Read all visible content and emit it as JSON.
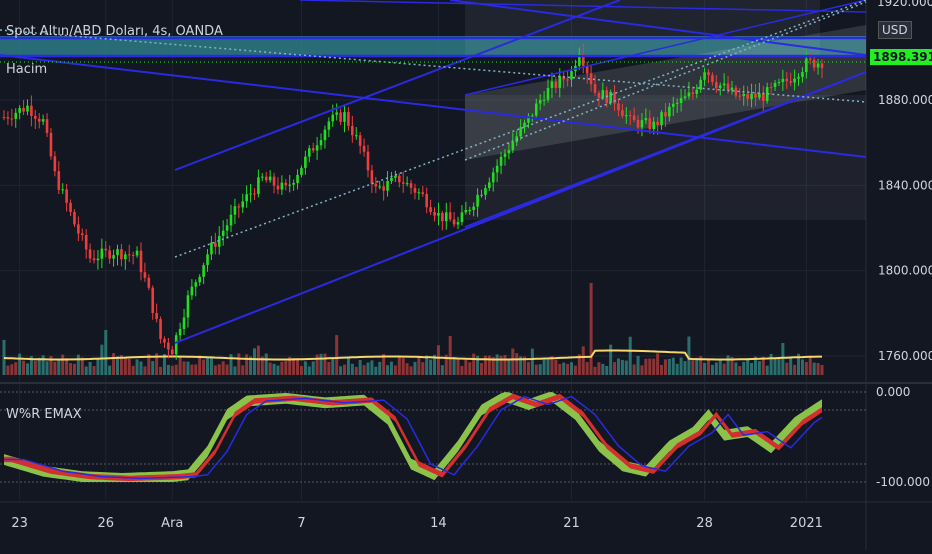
{
  "header": {
    "symbol_line": "Spot Altın/ABD Doları, 4s, OANDA",
    "volume_label": "Hacim",
    "currency": "USD",
    "top_partial_price": "1920.000"
  },
  "indicator": {
    "label": "W%R EMAX",
    "ticks": [
      "0.000",
      "-100.000"
    ],
    "range": [
      -110,
      5
    ]
  },
  "current_price": {
    "value": "1898.391",
    "color": "#22ee22"
  },
  "colors": {
    "up": "#26a69a",
    "up_candle": "#22dd22",
    "down_candle": "#ef3d3d",
    "trendline": "#2a2ae0",
    "dotted": "#7fb3c7",
    "volume_ma": "#f5d76e",
    "wr_green": "#8bc34a",
    "wr_red": "#d32f2f",
    "background": "#131722"
  },
  "chart_data": {
    "type": "candlestick",
    "title": "Spot Altın/ABD Doları, 4s, OANDA",
    "y_ticks": [
      1760,
      1800,
      1840,
      1880
    ],
    "y_tick_labels": [
      "1760.000",
      "1800.000",
      "1840.000",
      "1880.000"
    ],
    "ylim": [
      1748,
      1922
    ],
    "x_tick_labels": [
      "23",
      "26",
      "Ara",
      "7",
      "14",
      "21",
      "28",
      "2021"
    ],
    "x_tick_index": [
      4,
      26,
      43,
      76,
      111,
      145,
      179,
      205
    ],
    "bar_count": 210,
    "anchors": [
      [
        0,
        1872
      ],
      [
        6,
        1877
      ],
      [
        10,
        1870
      ],
      [
        13,
        1845
      ],
      [
        18,
        1822
      ],
      [
        22,
        1806
      ],
      [
        28,
        1809
      ],
      [
        34,
        1807
      ],
      [
        37,
        1790
      ],
      [
        40,
        1768
      ],
      [
        43,
        1763
      ],
      [
        47,
        1787
      ],
      [
        52,
        1808
      ],
      [
        60,
        1830
      ],
      [
        66,
        1843
      ],
      [
        72,
        1838
      ],
      [
        77,
        1852
      ],
      [
        83,
        1870
      ],
      [
        87,
        1873
      ],
      [
        91,
        1858
      ],
      [
        95,
        1838
      ],
      [
        101,
        1843
      ],
      [
        107,
        1835
      ],
      [
        111,
        1826
      ],
      [
        116,
        1822
      ],
      [
        122,
        1838
      ],
      [
        129,
        1858
      ],
      [
        133,
        1868
      ],
      [
        138,
        1883
      ],
      [
        145,
        1893
      ],
      [
        147,
        1904
      ],
      [
        151,
        1884
      ],
      [
        156,
        1880
      ],
      [
        160,
        1870
      ],
      [
        166,
        1868
      ],
      [
        171,
        1877
      ],
      [
        176,
        1883
      ],
      [
        179,
        1895
      ],
      [
        182,
        1888
      ],
      [
        188,
        1881
      ],
      [
        194,
        1882
      ],
      [
        200,
        1889
      ],
      [
        205,
        1897
      ],
      [
        209,
        1898
      ]
    ],
    "volume_ma_level": 1758.5,
    "wr_anchors": [
      [
        0,
        -75
      ],
      [
        10,
        -88
      ],
      [
        20,
        -94
      ],
      [
        30,
        -96
      ],
      [
        43,
        -94
      ],
      [
        47,
        -92
      ],
      [
        52,
        -66
      ],
      [
        57,
        -25
      ],
      [
        62,
        -10
      ],
      [
        72,
        -7
      ],
      [
        82,
        -12
      ],
      [
        92,
        -9
      ],
      [
        98,
        -30
      ],
      [
        104,
        -80
      ],
      [
        110,
        -92
      ],
      [
        116,
        -60
      ],
      [
        122,
        -20
      ],
      [
        128,
        -5
      ],
      [
        134,
        -14
      ],
      [
        140,
        -5
      ],
      [
        146,
        -25
      ],
      [
        152,
        -60
      ],
      [
        158,
        -82
      ],
      [
        164,
        -88
      ],
      [
        170,
        -60
      ],
      [
        176,
        -45
      ],
      [
        180,
        -25
      ],
      [
        184,
        -48
      ],
      [
        190,
        -44
      ],
      [
        196,
        -62
      ],
      [
        202,
        -34
      ],
      [
        209,
        -14
      ]
    ]
  }
}
